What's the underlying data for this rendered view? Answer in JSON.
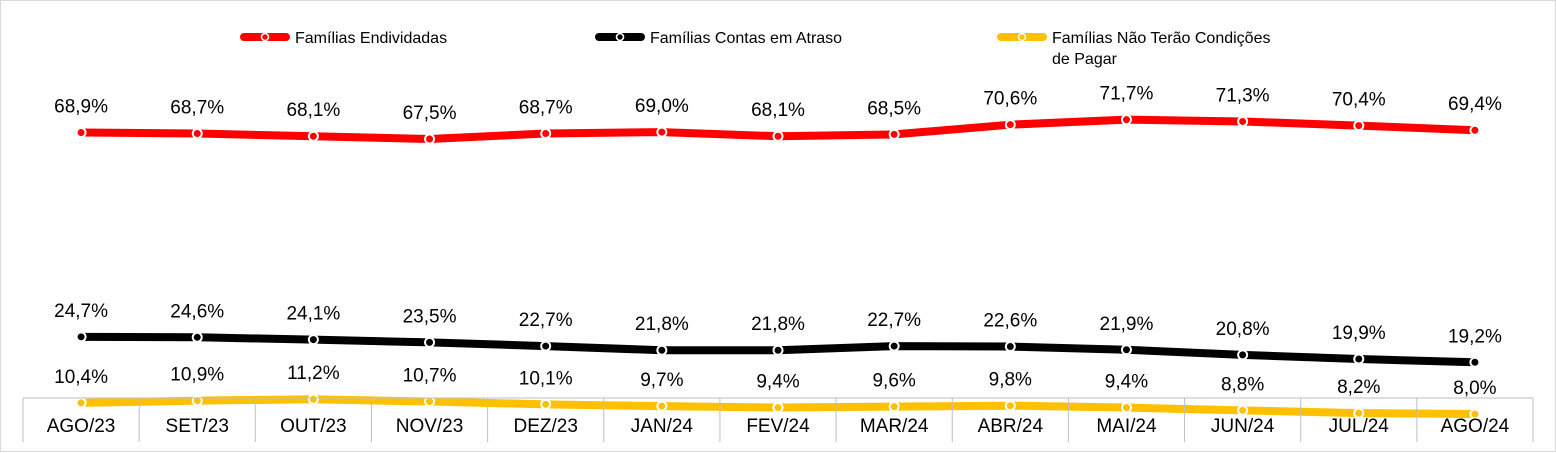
{
  "chart_data": {
    "type": "line",
    "categories": [
      "AGO/23",
      "SET/23",
      "OUT/23",
      "NOV/23",
      "DEZ/23",
      "JAN/24",
      "FEV/24",
      "MAR/24",
      "ABR/24",
      "MAI/24",
      "JUN/24",
      "JUL/24",
      "AGO/24"
    ],
    "series": [
      {
        "name": "Famílias Endividadas",
        "color": "#ff0000",
        "values": [
          68.9,
          68.7,
          68.1,
          67.5,
          68.7,
          69.0,
          68.1,
          68.5,
          70.6,
          71.7,
          71.3,
          70.4,
          69.4
        ],
        "labels": [
          "68,9%",
          "68,7%",
          "68,1%",
          "67,5%",
          "68,7%",
          "69,0%",
          "68,1%",
          "68,5%",
          "70,6%",
          "71,7%",
          "71,3%",
          "70,4%",
          "69,4%"
        ]
      },
      {
        "name": "Famílias Contas em Atraso",
        "color": "#000000",
        "values": [
          24.7,
          24.6,
          24.1,
          23.5,
          22.7,
          21.8,
          21.8,
          22.7,
          22.6,
          21.9,
          20.8,
          19.9,
          19.2
        ],
        "labels": [
          "24,7%",
          "24,6%",
          "24,1%",
          "23,5%",
          "22,7%",
          "21,8%",
          "21,8%",
          "22,7%",
          "22,6%",
          "21,9%",
          "20,8%",
          "19,9%",
          "19,2%"
        ]
      },
      {
        "name": "Famílias Não Terão Condições de Pagar",
        "name_lines": [
          "Famílias Não Terão Condições",
          "de Pagar"
        ],
        "color": "#ffc000",
        "values": [
          10.4,
          10.9,
          11.2,
          10.7,
          10.1,
          9.7,
          9.4,
          9.6,
          9.8,
          9.4,
          8.8,
          8.2,
          8.0
        ],
        "labels": [
          "10,4%",
          "10,9%",
          "11,2%",
          "10,7%",
          "10,1%",
          "9,7%",
          "9,4%",
          "9,6%",
          "9,8%",
          "9,4%",
          "8,8%",
          "8,2%",
          "8,0%"
        ]
      }
    ],
    "legend_position": "top",
    "grid": false,
    "ylim": [
      0,
      80
    ]
  }
}
